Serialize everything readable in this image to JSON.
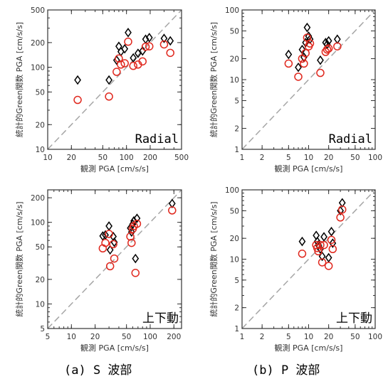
{
  "colors": {
    "model_black": "#000000",
    "model_red": "#e0281e",
    "ref_line": "#a6a6a6",
    "frame": "#333333"
  },
  "captions": [
    "(a) S 波部",
    "(b) P 波部"
  ],
  "chart_data": [
    {
      "type": "scatter",
      "xlabel": "観測 PGA [cm/s/s]",
      "ylabel": "統計的Green関数 PGA [cm/s/s]",
      "annotation": "Radial",
      "xlim": [
        10,
        500
      ],
      "ylim": [
        10,
        500
      ],
      "xticks": [
        "10",
        "20",
        "50",
        "100",
        "200",
        "500"
      ],
      "yticks": [
        "10",
        "20",
        "50",
        "100",
        "200",
        "500"
      ],
      "log": true,
      "reference_line": "y = x",
      "grid": false,
      "series": [
        {
          "marker": "diamond",
          "color": "black",
          "points": [
            [
              24,
              70
            ],
            [
              60,
              70
            ],
            [
              75,
              122
            ],
            [
              80,
              180
            ],
            [
              85,
              155
            ],
            [
              95,
              168
            ],
            [
              105,
              265
            ],
            [
              122,
              130
            ],
            [
              140,
              148
            ],
            [
              160,
              158
            ],
            [
              175,
              220
            ],
            [
              195,
              230
            ],
            [
              300,
              225
            ],
            [
              360,
              210
            ]
          ]
        },
        {
          "marker": "circle",
          "color": "red",
          "points": [
            [
              24,
              40
            ],
            [
              60,
              44
            ],
            [
              75,
              88
            ],
            [
              80,
              128
            ],
            [
              85,
              108
            ],
            [
              95,
              112
            ],
            [
              105,
              205
            ],
            [
              122,
              104
            ],
            [
              140,
              108
            ],
            [
              160,
              118
            ],
            [
              175,
              178
            ],
            [
              195,
              180
            ],
            [
              300,
              190
            ],
            [
              360,
              150
            ]
          ]
        }
      ]
    },
    {
      "type": "scatter",
      "xlabel": "観測 PGA [cm/s/s]",
      "ylabel": "統計的Green関数 PGA [cm/s/s]",
      "annotation": "Radial",
      "xlim": [
        1,
        100
      ],
      "ylim": [
        1,
        100
      ],
      "xticks": [
        "1",
        "2",
        "5",
        "10",
        "20",
        "50",
        "100"
      ],
      "yticks": [
        "1",
        "2",
        "5",
        "10",
        "20",
        "50",
        "100"
      ],
      "log": true,
      "reference_line": "y = x",
      "grid": false,
      "series": [
        {
          "marker": "diamond",
          "color": "black",
          "points": [
            [
              5,
              23
            ],
            [
              7,
              15
            ],
            [
              8,
              27
            ],
            [
              8.5,
              21
            ],
            [
              9,
              34
            ],
            [
              9.5,
              56
            ],
            [
              10,
              42
            ],
            [
              10.5,
              38
            ],
            [
              15,
              19
            ],
            [
              18,
              34
            ],
            [
              19,
              32
            ],
            [
              20,
              36
            ],
            [
              27,
              38
            ]
          ]
        },
        {
          "marker": "circle",
          "color": "red",
          "points": [
            [
              5,
              17
            ],
            [
              7,
              11
            ],
            [
              8,
              20
            ],
            [
              8.5,
              17
            ],
            [
              9,
              24
            ],
            [
              9.5,
              40
            ],
            [
              10,
              30
            ],
            [
              10.5,
              33
            ],
            [
              15,
              12.5
            ],
            [
              18,
              25
            ],
            [
              19,
              27
            ],
            [
              20,
              28
            ],
            [
              27,
              30
            ]
          ]
        }
      ]
    },
    {
      "type": "scatter",
      "xlabel": "観測 PGA [cm/s/s]",
      "ylabel": "統計的Green関数 PGA [cm/s/s]",
      "annotation": "上下動",
      "xlim": [
        5,
        250
      ],
      "ylim": [
        5,
        250
      ],
      "xticks": [
        "5",
        "10",
        "20",
        "50",
        "100",
        "200"
      ],
      "yticks": [
        "5",
        "10",
        "20",
        "50",
        "100",
        "200"
      ],
      "log": true,
      "reference_line": "y = x",
      "grid": false,
      "series": [
        {
          "marker": "diamond",
          "color": "black",
          "points": [
            [
              25,
              68
            ],
            [
              27,
              70
            ],
            [
              30,
              90
            ],
            [
              31,
              46
            ],
            [
              34,
              67
            ],
            [
              35,
              57
            ],
            [
              56,
              85
            ],
            [
              58,
              76
            ],
            [
              60,
              95
            ],
            [
              62,
              104
            ],
            [
              65,
              36
            ],
            [
              68,
              112
            ],
            [
              190,
              170
            ]
          ]
        },
        {
          "marker": "circle",
          "color": "red",
          "points": [
            [
              25,
              48
            ],
            [
              27,
              56
            ],
            [
              30,
              72
            ],
            [
              31,
              29
            ],
            [
              34,
              54
            ],
            [
              35,
              36
            ],
            [
              56,
              67
            ],
            [
              58,
              56
            ],
            [
              60,
              83
            ],
            [
              62,
              90
            ],
            [
              65,
              24
            ],
            [
              68,
              96
            ],
            [
              190,
              140
            ]
          ]
        }
      ]
    },
    {
      "type": "scatter",
      "xlabel": "観測 PGA [cm/s/s]",
      "ylabel": "統計的Green関数 PGA [cm/s/s]",
      "annotation": "上下動",
      "xlim": [
        1,
        100
      ],
      "ylim": [
        1,
        100
      ],
      "xticks": [
        "1",
        "2",
        "5",
        "10",
        "20",
        "50",
        "100"
      ],
      "yticks": [
        "1",
        "2",
        "5",
        "10",
        "20",
        "50",
        "100"
      ],
      "log": true,
      "reference_line": "y = x",
      "grid": false,
      "series": [
        {
          "marker": "diamond",
          "color": "black",
          "points": [
            [
              8,
              18
            ],
            [
              13,
              22
            ],
            [
              13.5,
              18
            ],
            [
              14,
              16
            ],
            [
              15,
              14
            ],
            [
              16,
              11
            ],
            [
              17,
              21
            ],
            [
              20,
              10.5
            ],
            [
              22,
              25
            ],
            [
              23,
              17
            ],
            [
              30,
              50
            ],
            [
              32,
              65
            ]
          ]
        },
        {
          "marker": "circle",
          "color": "red",
          "points": [
            [
              8,
              12
            ],
            [
              13,
              16
            ],
            [
              13.5,
              14.5
            ],
            [
              14,
              13
            ],
            [
              15,
              16
            ],
            [
              16,
              9
            ],
            [
              17,
              16
            ],
            [
              20,
              8
            ],
            [
              22,
              19
            ],
            [
              23,
              14
            ],
            [
              30,
              40
            ],
            [
              32,
              52
            ]
          ]
        }
      ]
    }
  ]
}
